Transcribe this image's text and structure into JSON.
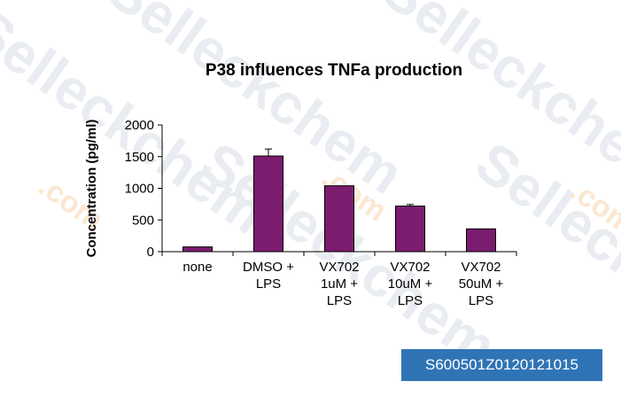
{
  "watermark": {
    "brand": "Selleckchem",
    "suffix": ".com"
  },
  "badge": {
    "id": "S600501Z0120121015"
  },
  "chart_data": {
    "type": "bar",
    "title": "P38 influences TNFa production",
    "xlabel": "",
    "ylabel": "Concentration (pg/ml)",
    "ylim": [
      0,
      2000
    ],
    "yticks": [
      0,
      500,
      1000,
      1500,
      2000
    ],
    "grid": false,
    "legend": "none",
    "bar_color": "#7b1c6e",
    "categories": [
      [
        "none"
      ],
      [
        "DMSO +",
        "LPS"
      ],
      [
        "VX702",
        "1uM +",
        "LPS"
      ],
      [
        "VX702",
        "10uM +",
        "LPS"
      ],
      [
        "VX702",
        "50uM +",
        "LPS"
      ]
    ],
    "values": [
      75,
      1510,
      1040,
      720,
      360
    ],
    "errors": [
      0,
      110,
      0,
      25,
      0
    ]
  }
}
